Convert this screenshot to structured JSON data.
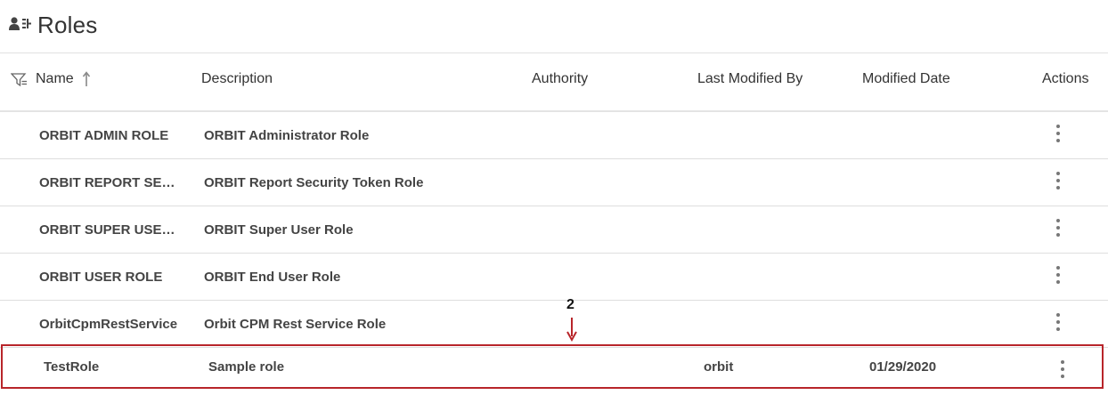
{
  "page": {
    "title": "Roles",
    "title_icon": "users-hierarchy-icon"
  },
  "table": {
    "columns": {
      "name": "Name",
      "description": "Description",
      "authority": "Authority",
      "last_modified_by": "Last Modified By",
      "modified_date": "Modified Date",
      "actions": "Actions"
    },
    "sort": {
      "column": "Name",
      "direction": "ascending"
    },
    "rows": [
      {
        "name": "ORBIT ADMIN ROLE",
        "description": "ORBIT Administrator Role",
        "authority": "",
        "last_modified_by": "",
        "modified_date": ""
      },
      {
        "name": "ORBIT REPORT SE…",
        "description": "ORBIT Report Security Token Role",
        "authority": "",
        "last_modified_by": "",
        "modified_date": ""
      },
      {
        "name": "ORBIT SUPER USE…",
        "description": "ORBIT Super User Role",
        "authority": "",
        "last_modified_by": "",
        "modified_date": ""
      },
      {
        "name": "ORBIT USER ROLE",
        "description": "ORBIT End User Role",
        "authority": "",
        "last_modified_by": "",
        "modified_date": ""
      },
      {
        "name": "OrbitCpmRestService",
        "description": "Orbit CPM Rest Service Role",
        "authority": "",
        "last_modified_by": "",
        "modified_date": ""
      },
      {
        "name": "TestRole",
        "description": "Sample role",
        "authority": "",
        "last_modified_by": "orbit",
        "modified_date": "01/29/2020"
      }
    ]
  },
  "annotation": {
    "number": "2",
    "color": "#b8252a"
  }
}
